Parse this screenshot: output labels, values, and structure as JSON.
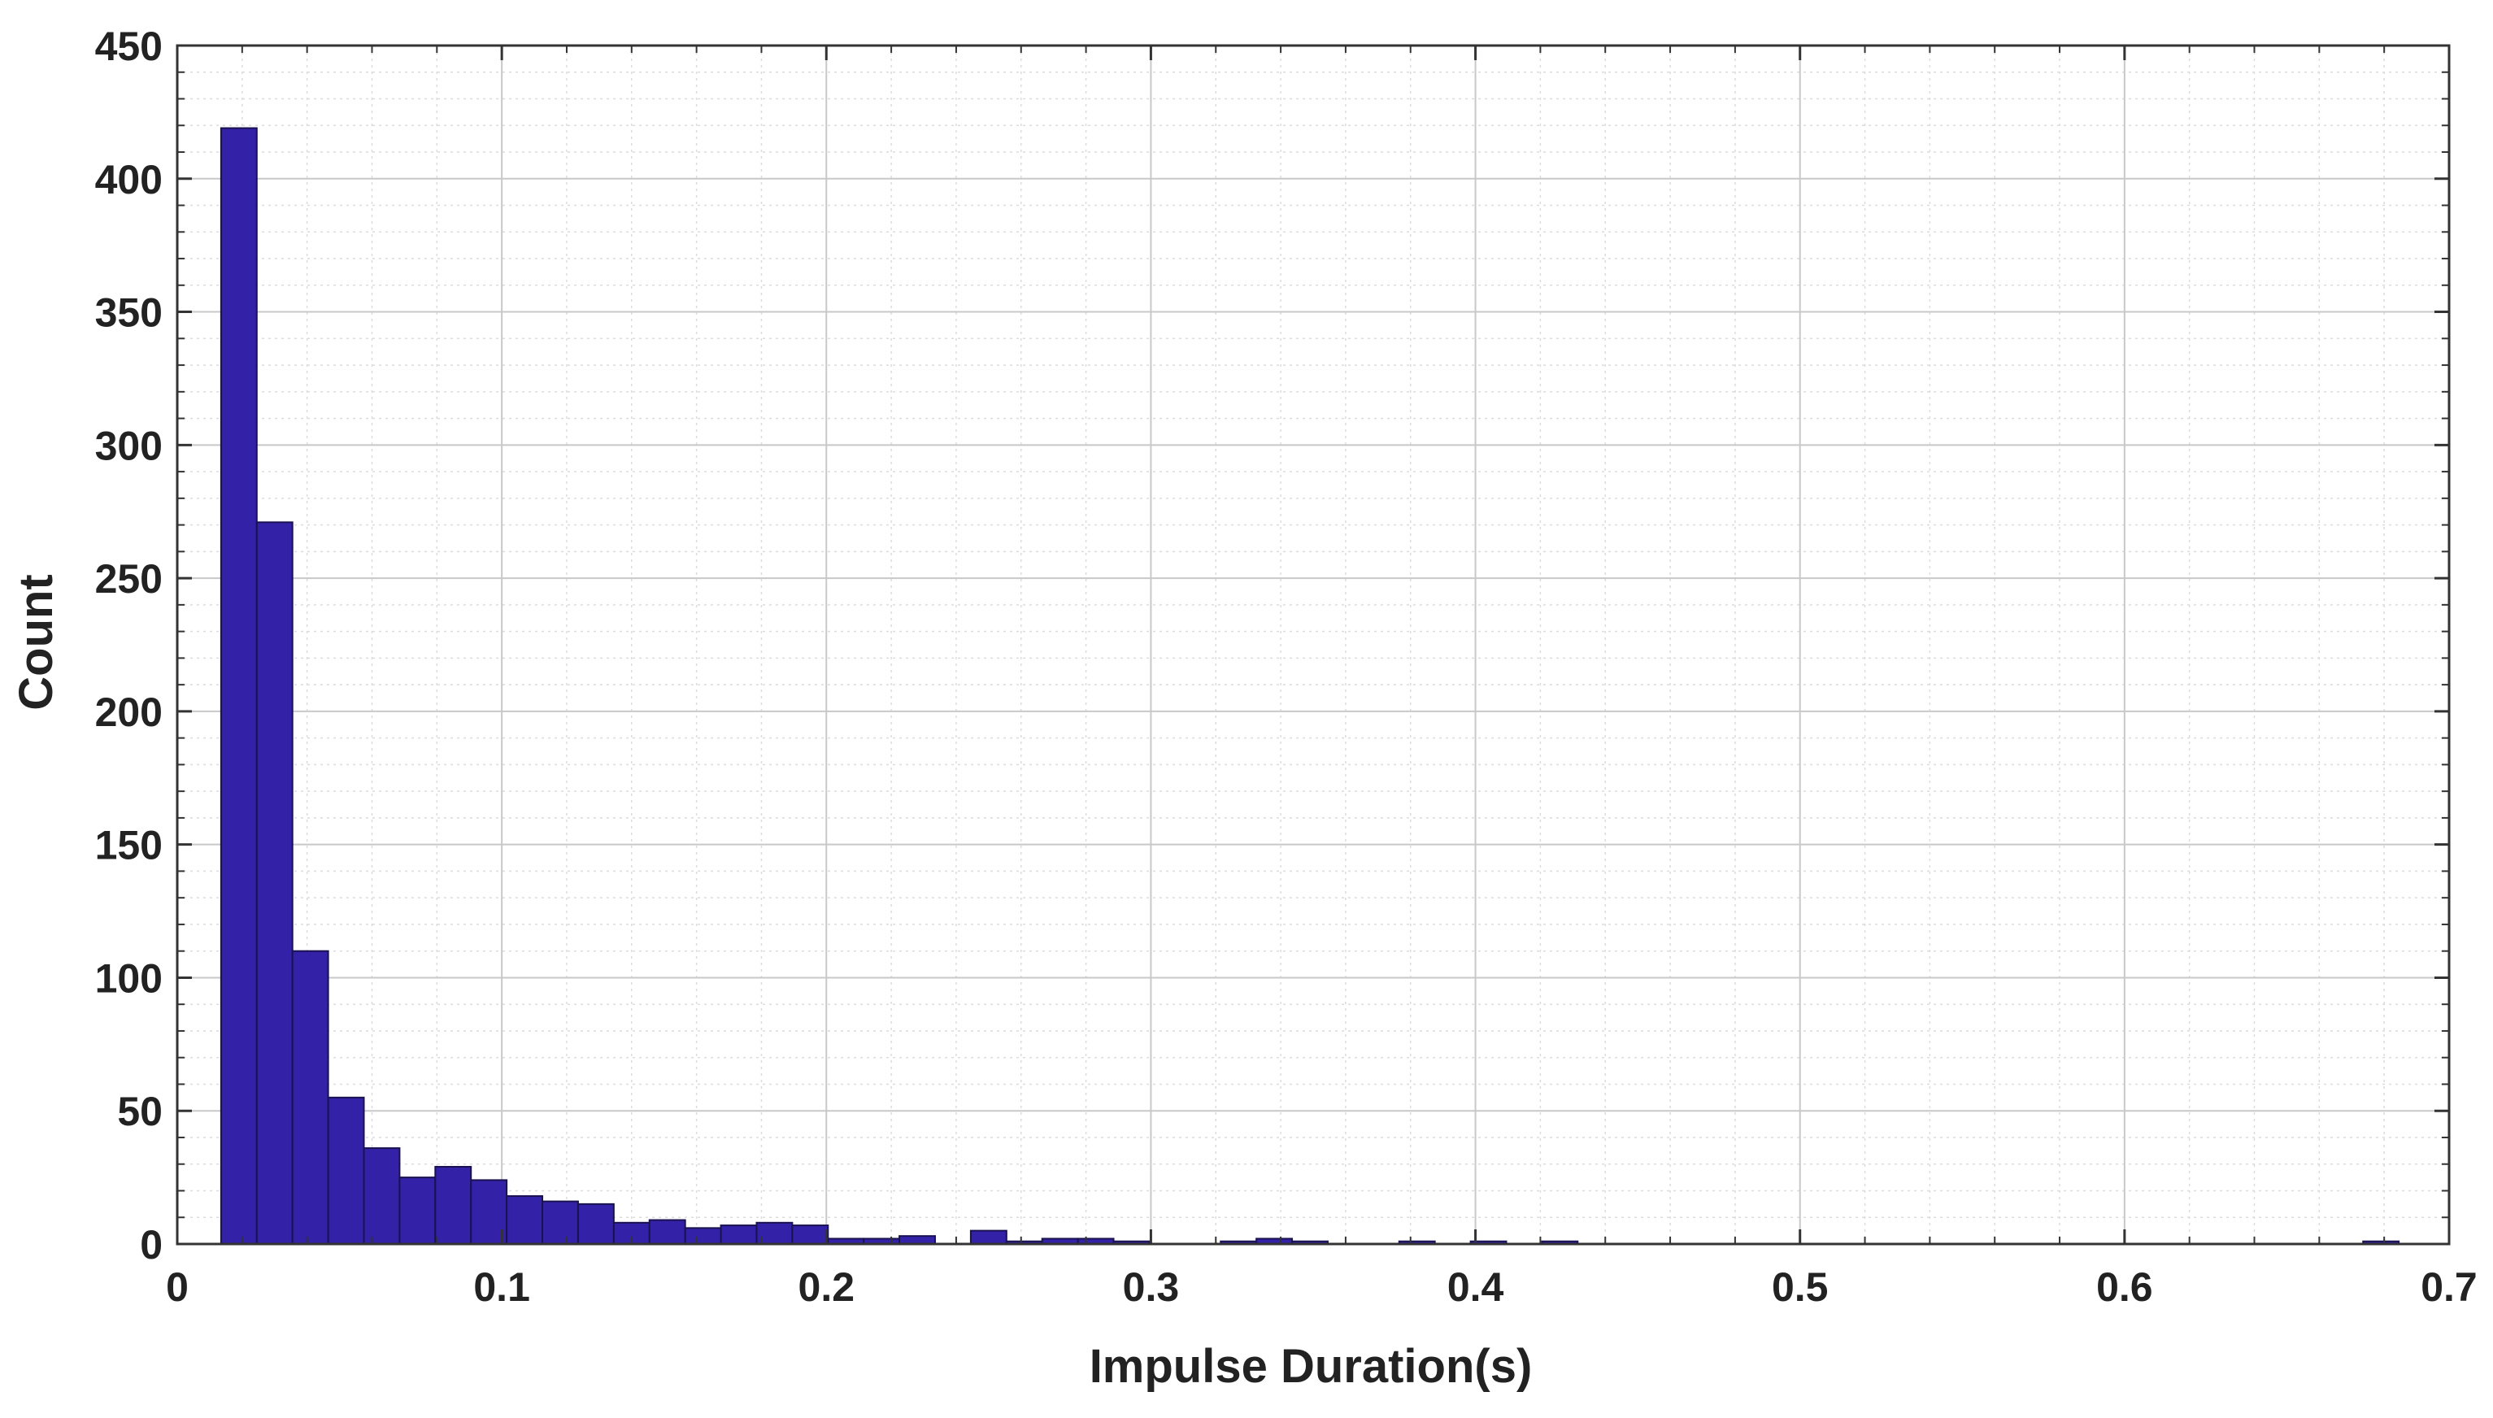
{
  "chart_data": {
    "type": "bar",
    "subtype": "histogram",
    "xlabel": "Impulse Duration(s)",
    "ylabel": "Count",
    "xlim": [
      0,
      0.7
    ],
    "ylim": [
      0,
      450
    ],
    "xticks": [
      0,
      0.1,
      0.2,
      0.3,
      0.4,
      0.5,
      0.6,
      0.7
    ],
    "xtick_labels": [
      "0",
      "0.1",
      "0.2",
      "0.3",
      "0.4",
      "0.5",
      "0.6",
      "0.7"
    ],
    "yticks": [
      0,
      50,
      100,
      150,
      200,
      250,
      300,
      350,
      400,
      450
    ],
    "ytick_labels": [
      "0",
      "50",
      "100",
      "150",
      "200",
      "250",
      "300",
      "350",
      "400",
      "450"
    ],
    "grid": true,
    "minor_grid": true,
    "bar_color": "#3322a8",
    "bin_width": 0.011,
    "bin_edges_start": 0.0135,
    "counts": [
      419,
      271,
      110,
      55,
      36,
      25,
      29,
      24,
      18,
      16,
      15,
      8,
      9,
      6,
      7,
      8,
      7,
      2,
      2,
      3,
      0,
      5,
      1,
      2,
      2,
      1,
      0,
      0,
      1,
      2,
      1,
      0,
      0,
      1,
      0,
      1,
      0,
      1,
      0,
      0,
      0,
      0,
      0,
      0,
      0,
      0,
      0,
      0,
      0,
      0,
      0,
      0,
      0,
      0,
      0,
      0,
      0,
      0,
      0,
      0,
      1
    ]
  }
}
